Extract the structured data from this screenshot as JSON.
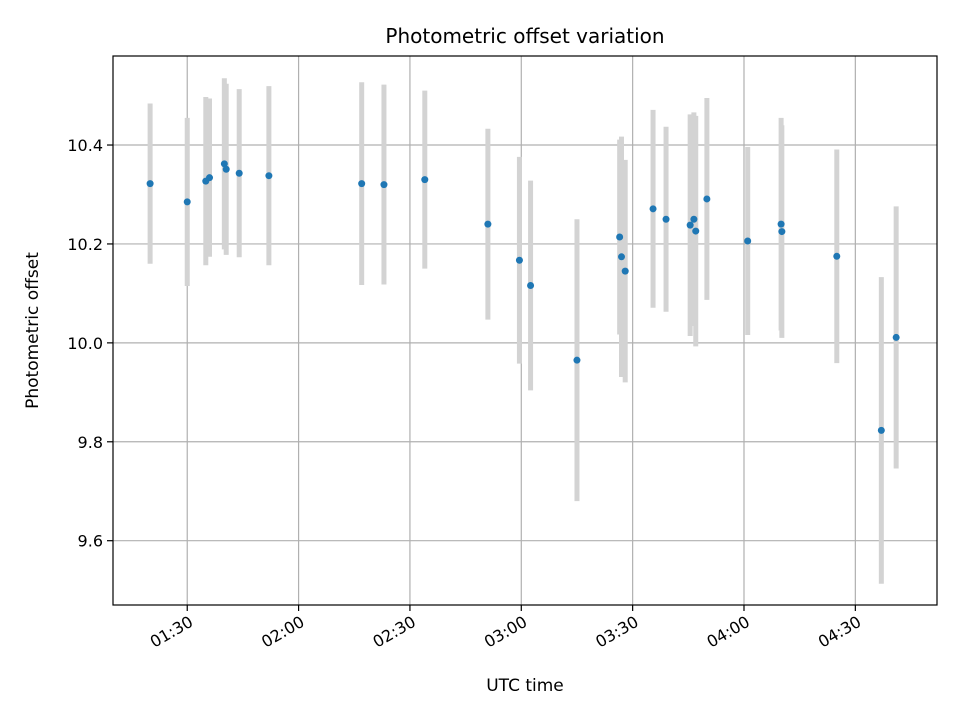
{
  "chart_data": {
    "type": "scatter",
    "title": "Photometric offset variation",
    "xlabel": "UTC time",
    "ylabel": "Photometric offset",
    "x_type": "time",
    "xlim": [
      "01:10",
      "04:52"
    ],
    "ylim": [
      9.47,
      10.58
    ],
    "x_ticks": [
      "01:30",
      "02:00",
      "02:30",
      "03:00",
      "03:30",
      "04:00",
      "04:30"
    ],
    "y_ticks": [
      "9.6",
      "9.8",
      "10.0",
      "10.2",
      "10.4"
    ],
    "grid": true,
    "colors": {
      "points": "#1f77b4",
      "error_bars": "#d3d3d3",
      "grid": "#b0b0b0"
    },
    "series": [
      {
        "x": [
          "01:20",
          "01:30",
          "01:35",
          "01:36",
          "01:40",
          "01:40.5",
          "01:44",
          "01:52",
          "02:17",
          "02:23",
          "02:34",
          "02:51",
          "02:59.5",
          "03:02.5",
          "03:15",
          "03:26.5",
          "03:27",
          "03:28",
          "03:35.5",
          "03:39",
          "03:45.5",
          "03:46.5",
          "03:47",
          "03:50",
          "04:01",
          "04:10",
          "04:10.2",
          "04:25",
          "04:37",
          "04:41"
        ],
        "y": [
          10.322,
          10.285,
          10.327,
          10.334,
          10.362,
          10.351,
          10.343,
          10.338,
          10.322,
          10.32,
          10.33,
          10.24,
          10.167,
          10.116,
          9.965,
          10.214,
          10.174,
          10.145,
          10.271,
          10.25,
          10.238,
          10.25,
          10.226,
          10.291,
          10.206,
          10.24,
          10.225,
          10.175,
          9.823,
          10.011
        ],
        "yerr": [
          0.162,
          0.17,
          0.17,
          0.16,
          0.173,
          0.173,
          0.17,
          0.181,
          0.205,
          0.202,
          0.18,
          0.193,
          0.209,
          0.212,
          0.285,
          0.197,
          0.243,
          0.225,
          0.2,
          0.187,
          0.224,
          0.216,
          0.233,
          0.204,
          0.19,
          0.215,
          0.215,
          0.216,
          0.31,
          0.265
        ]
      }
    ]
  }
}
